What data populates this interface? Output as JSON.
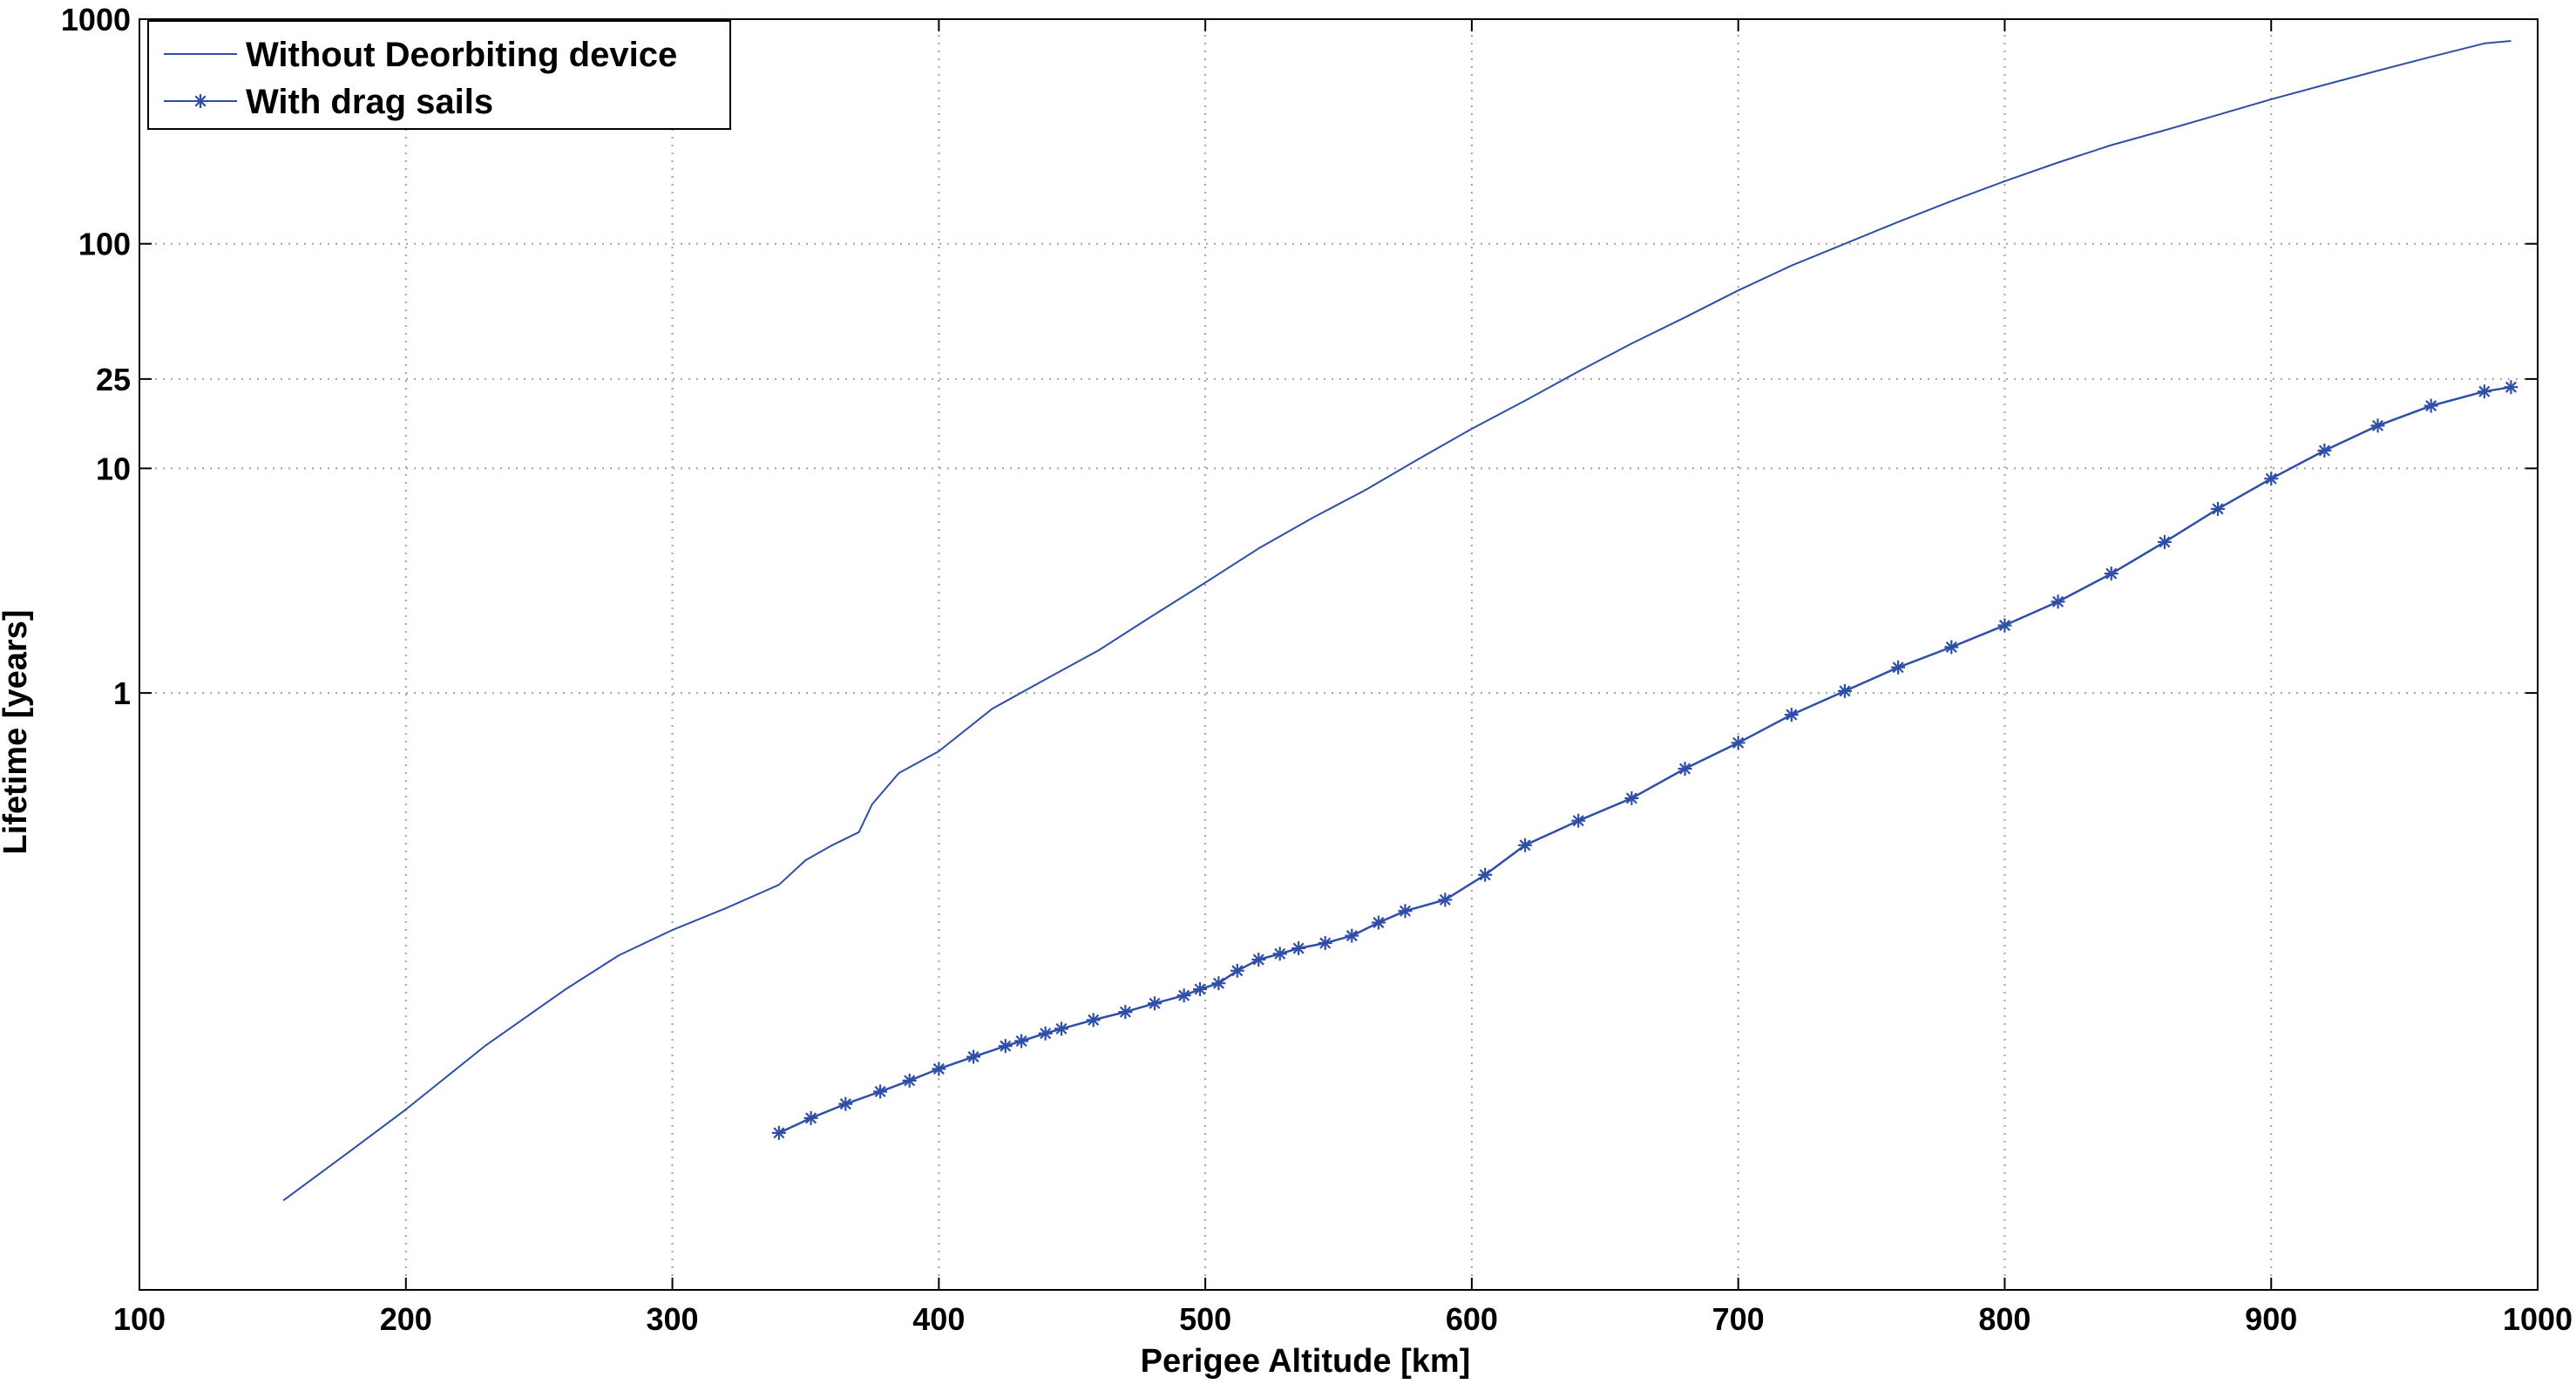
{
  "chart_data": {
    "type": "line",
    "xlabel": "Perigee Altitude [km]",
    "ylabel": "Lifetime [years]",
    "xlim": [
      100,
      1000
    ],
    "ylim": [
      0.0022,
      1000
    ],
    "yscale": "log",
    "grid": true,
    "legend_position": "top-left",
    "x_ticks": [
      100,
      200,
      300,
      400,
      500,
      600,
      700,
      800,
      900,
      1000
    ],
    "y_ticks": [
      1,
      10,
      25,
      100,
      1000
    ],
    "y_tick_labels": [
      "1",
      "10",
      "25",
      "100",
      "1000"
    ],
    "colors": {
      "series": "#2f4ea8",
      "grid": "#a0a0a0",
      "axis": "#000000"
    },
    "series": [
      {
        "name": "Without Deorbiting device",
        "marker": "none",
        "x": [
          154,
          180,
          200,
          230,
          260,
          280,
          300,
          320,
          340,
          350,
          360,
          370,
          375,
          385,
          400,
          420,
          440,
          460,
          480,
          500,
          520,
          540,
          560,
          580,
          600,
          620,
          640,
          660,
          680,
          700,
          720,
          740,
          760,
          780,
          800,
          820,
          840,
          860,
          880,
          900,
          920,
          940,
          960,
          980,
          990
        ],
        "y": [
          0.0055,
          0.0093,
          0.014,
          0.027,
          0.048,
          0.068,
          0.088,
          0.11,
          0.14,
          0.18,
          0.21,
          0.24,
          0.32,
          0.44,
          0.55,
          0.85,
          1.15,
          1.55,
          2.2,
          3.1,
          4.4,
          6.0,
          8.0,
          11.0,
          15,
          20,
          27,
          36,
          47,
          62,
          80,
          100,
          125,
          155,
          190,
          230,
          275,
          320,
          375,
          440,
          510,
          590,
          680,
          780,
          800
        ]
      },
      {
        "name": "With drag sails",
        "marker": "asterisk",
        "x": [
          340,
          352,
          365,
          378,
          389,
          400,
          413,
          425,
          431,
          440,
          446,
          458,
          470,
          481,
          492,
          498,
          505,
          512,
          520,
          528,
          535,
          545,
          555,
          565,
          575,
          590,
          605,
          620,
          640,
          660,
          680,
          700,
          720,
          740,
          760,
          780,
          800,
          820,
          840,
          860,
          880,
          900,
          920,
          940,
          960,
          980,
          990
        ],
        "y": [
          0.011,
          0.0128,
          0.0148,
          0.0168,
          0.0188,
          0.0212,
          0.024,
          0.0268,
          0.0282,
          0.0305,
          0.032,
          0.035,
          0.038,
          0.0415,
          0.045,
          0.048,
          0.051,
          0.058,
          0.065,
          0.069,
          0.073,
          0.077,
          0.083,
          0.095,
          0.107,
          0.12,
          0.155,
          0.21,
          0.27,
          0.34,
          0.46,
          0.6,
          0.8,
          1.02,
          1.3,
          1.6,
          2.0,
          2.55,
          3.4,
          4.7,
          6.6,
          9.0,
          12.0,
          15.5,
          19.0,
          22.0,
          23.0
        ]
      }
    ]
  }
}
